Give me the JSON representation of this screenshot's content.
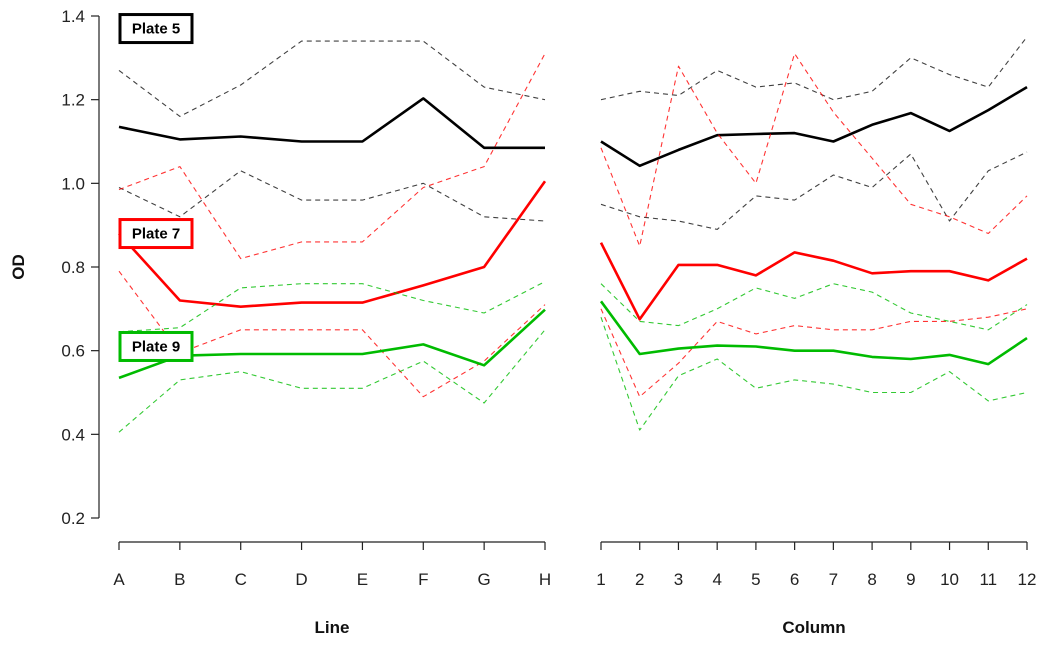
{
  "chart_data": [
    {
      "type": "line",
      "panel": "left",
      "xlabel": "Line",
      "ylabel": "OD",
      "categories": [
        "A",
        "B",
        "C",
        "D",
        "E",
        "F",
        "G",
        "H"
      ],
      "ylim": [
        0.2,
        1.4
      ],
      "yticks": [
        0.2,
        0.4,
        0.6,
        0.8,
        1.0,
        1.2,
        1.4
      ],
      "grid": false,
      "series": [
        {
          "name": "Plate 5",
          "color": "#000000",
          "style": "solid",
          "values": [
            1.135,
            1.105,
            1.112,
            1.1,
            1.1,
            1.203,
            1.085,
            1.085
          ]
        },
        {
          "color": "#000000",
          "style": "dashed",
          "values": [
            1.27,
            1.16,
            1.235,
            1.34,
            1.34,
            1.34,
            1.23,
            1.2
          ]
        },
        {
          "color": "#000000",
          "style": "dashed",
          "values": [
            0.99,
            0.92,
            1.03,
            0.96,
            0.96,
            1.0,
            0.92,
            0.91
          ]
        },
        {
          "name": "Plate 7",
          "color": "#ff0000",
          "style": "solid",
          "values": [
            0.88,
            0.72,
            0.705,
            0.715,
            0.715,
            0.756,
            0.8,
            1.005
          ]
        },
        {
          "color": "#ff0000",
          "style": "dashed",
          "values": [
            0.985,
            1.04,
            0.82,
            0.86,
            0.86,
            0.99,
            1.04,
            1.31
          ]
        },
        {
          "color": "#ff0000",
          "style": "dashed",
          "values": [
            0.79,
            0.595,
            0.65,
            0.65,
            0.65,
            0.49,
            0.575,
            0.71
          ]
        },
        {
          "name": "Plate 9",
          "color": "#00bb00",
          "style": "solid",
          "values": [
            0.535,
            0.588,
            0.592,
            0.592,
            0.592,
            0.615,
            0.565,
            0.698
          ]
        },
        {
          "color": "#00bb00",
          "style": "dashed",
          "values": [
            0.645,
            0.655,
            0.75,
            0.76,
            0.76,
            0.72,
            0.69,
            0.765
          ]
        },
        {
          "color": "#00bb00",
          "style": "dashed",
          "values": [
            0.405,
            0.53,
            0.55,
            0.51,
            0.51,
            0.575,
            0.475,
            0.65
          ]
        }
      ]
    },
    {
      "type": "line",
      "panel": "right",
      "xlabel": "Column",
      "categories": [
        "1",
        "2",
        "3",
        "4",
        "5",
        "6",
        "7",
        "8",
        "9",
        "10",
        "11",
        "12"
      ],
      "ylim": [
        0.2,
        1.4
      ],
      "grid": false,
      "series": [
        {
          "name": "Plate 5",
          "color": "#000000",
          "style": "solid",
          "values": [
            1.1,
            1.042,
            1.08,
            1.115,
            1.118,
            1.12,
            1.1,
            1.14,
            1.168,
            1.125,
            1.175,
            1.23
          ]
        },
        {
          "color": "#000000",
          "style": "dashed",
          "values": [
            1.2,
            1.22,
            1.21,
            1.27,
            1.23,
            1.24,
            1.2,
            1.22,
            1.3,
            1.26,
            1.23,
            1.35
          ]
        },
        {
          "color": "#000000",
          "style": "dashed",
          "values": [
            0.95,
            0.92,
            0.91,
            0.89,
            0.97,
            0.96,
            1.02,
            0.99,
            1.07,
            0.91,
            1.03,
            1.075
          ]
        },
        {
          "name": "Plate 7",
          "color": "#ff0000",
          "style": "solid",
          "values": [
            0.858,
            0.675,
            0.805,
            0.805,
            0.78,
            0.835,
            0.815,
            0.785,
            0.79,
            0.79,
            0.768,
            0.82
          ]
        },
        {
          "color": "#ff0000",
          "style": "dashed",
          "values": [
            1.085,
            0.85,
            1.28,
            1.12,
            1.0,
            1.31,
            1.17,
            1.06,
            0.95,
            0.92,
            0.88,
            0.97
          ]
        },
        {
          "color": "#ff0000",
          "style": "dashed",
          "values": [
            0.7,
            0.49,
            0.57,
            0.67,
            0.64,
            0.66,
            0.65,
            0.65,
            0.67,
            0.67,
            0.68,
            0.7
          ]
        },
        {
          "name": "Plate 9",
          "color": "#00bb00",
          "style": "solid",
          "values": [
            0.718,
            0.592,
            0.605,
            0.612,
            0.61,
            0.6,
            0.6,
            0.585,
            0.58,
            0.59,
            0.568,
            0.63
          ]
        },
        {
          "color": "#00bb00",
          "style": "dashed",
          "values": [
            0.76,
            0.67,
            0.66,
            0.7,
            0.75,
            0.725,
            0.76,
            0.74,
            0.69,
            0.67,
            0.65,
            0.71
          ]
        },
        {
          "color": "#00bb00",
          "style": "dashed",
          "values": [
            0.68,
            0.41,
            0.54,
            0.58,
            0.51,
            0.53,
            0.52,
            0.5,
            0.5,
            0.55,
            0.48,
            0.5
          ]
        }
      ]
    }
  ],
  "legend": {
    "placement": "left panel, stacked on the left edge at each series level",
    "items": [
      {
        "label": "Plate 5",
        "color": "#000000"
      },
      {
        "label": "Plate 7",
        "color": "#ff0000"
      },
      {
        "label": "Plate 9",
        "color": "#00bb00"
      }
    ]
  }
}
